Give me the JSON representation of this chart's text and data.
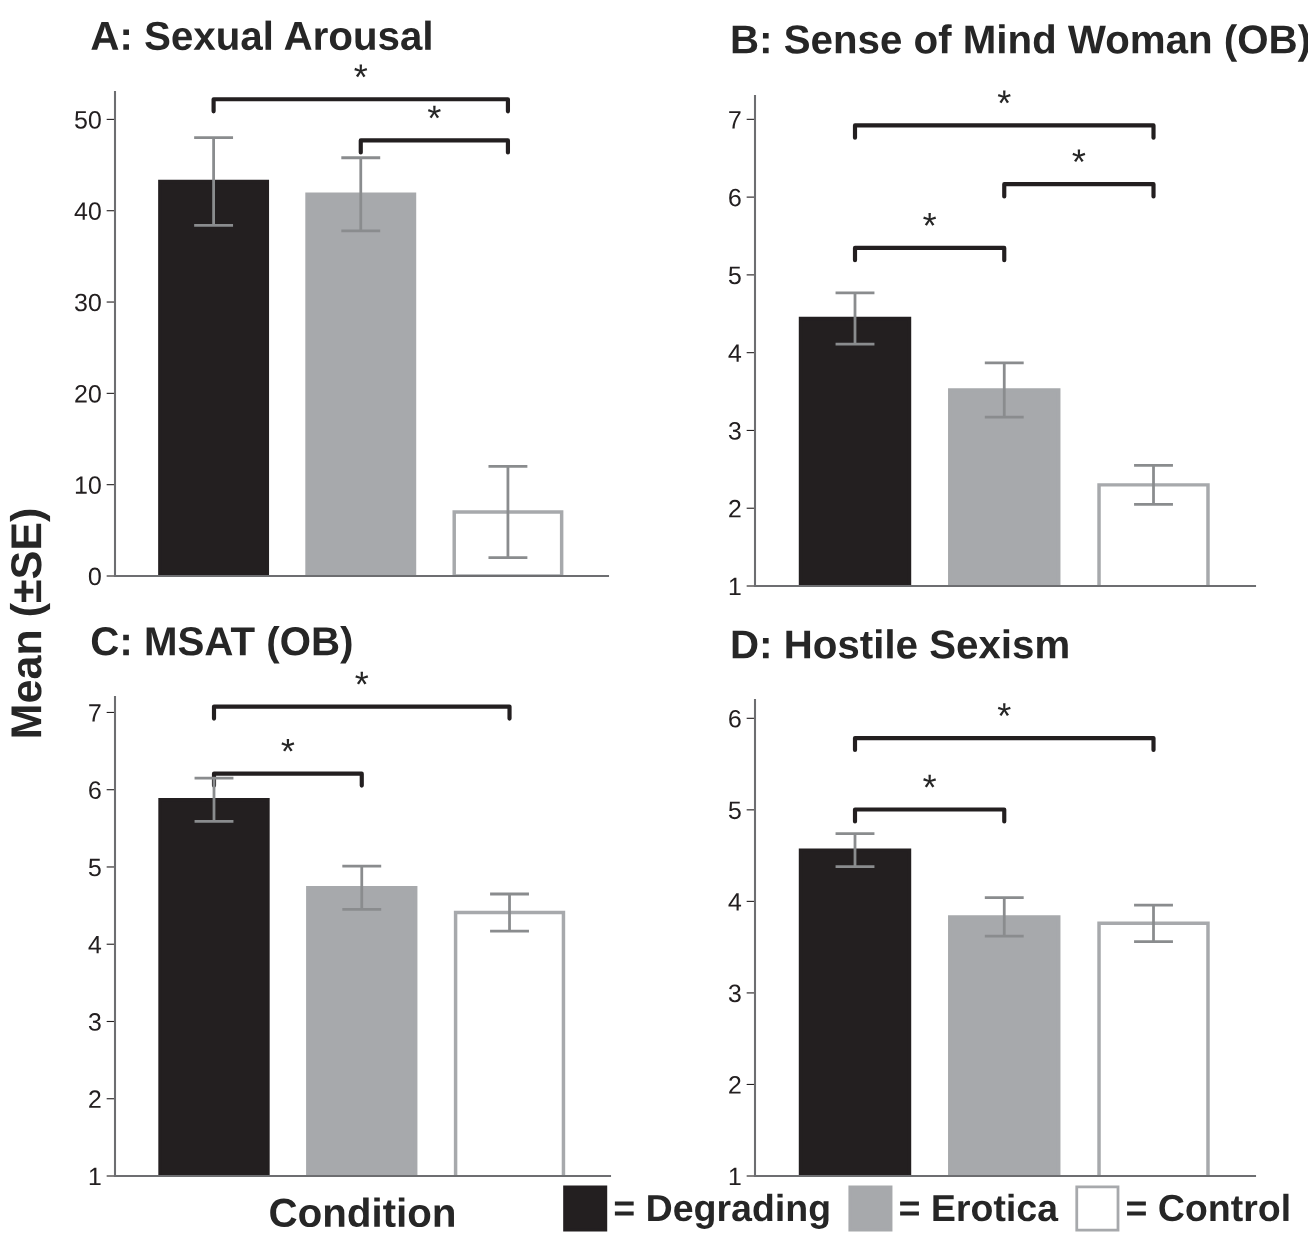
{
  "chart_data": [
    {
      "type": "bar",
      "title": "A: Sexual Arousal",
      "ylabel": "Mean (±SE)",
      "categories": [
        null
      ],
      "ylim": [
        0,
        53
      ],
      "yticks": [
        0,
        10,
        20,
        30,
        40,
        50
      ],
      "tick_labels": "y",
      "annotations": [
        "*",
        "*"
      ],
      "series": [
        {
          "color": "#231f20",
          "values": [
            43.2
          ],
          "errors": [
            4.8
          ]
        },
        {
          "color": "#a7a9ac",
          "values": [
            41.8
          ],
          "errors": [
            4.0
          ]
        },
        {
          "color": "#ffffff",
          "values": [
            7.0
          ],
          "errors": [
            5.0
          ]
        }
      ]
    },
    {
      "type": "bar",
      "title": "B: Sense of Mind Woman (OB)",
      "categories": [
        null
      ],
      "ylim": [
        1,
        7.3
      ],
      "yticks": [
        1,
        2,
        3,
        4,
        5,
        6,
        7
      ],
      "tick_labels": "y",
      "annotations": [
        "*",
        "*",
        "*"
      ],
      "series": [
        {
          "color": "#231f20",
          "values": [
            4.44
          ],
          "errors": [
            0.33
          ]
        },
        {
          "color": "#a7a9ac",
          "values": [
            3.52
          ],
          "errors": [
            0.35
          ]
        },
        {
          "color": "#ffffff",
          "values": [
            2.3
          ],
          "errors": [
            0.25
          ]
        }
      ]
    },
    {
      "type": "bar",
      "title": "C: MSAT (OB)",
      "xlabel": "Condition",
      "categories": [
        null
      ],
      "ylim": [
        1,
        7.2
      ],
      "yticks": [
        1,
        2,
        3,
        4,
        5,
        6,
        7
      ],
      "tick_labels": "y",
      "annotations": [
        "*",
        "*"
      ],
      "series": [
        {
          "color": "#231f20",
          "values": [
            5.87
          ],
          "errors": [
            0.28
          ]
        },
        {
          "color": "#a7a9ac",
          "values": [
            4.73
          ],
          "errors": [
            0.28
          ]
        },
        {
          "color": "#ffffff",
          "values": [
            4.41
          ],
          "errors": [
            0.24
          ]
        }
      ]
    },
    {
      "type": "bar",
      "title": "D: Hostile Sexism",
      "categories": [
        null
      ],
      "ylim": [
        1,
        6.2
      ],
      "yticks": [
        1,
        2,
        3,
        4,
        5,
        6
      ],
      "tick_labels": "y",
      "legend": "bottom",
      "annotations": [
        "*",
        "*"
      ],
      "series": [
        {
          "name": "= Degrading",
          "color": "#231f20",
          "values": [
            4.56
          ],
          "errors": [
            0.18
          ]
        },
        {
          "name": "= Erotica",
          "color": "#a7a9ac",
          "values": [
            3.83
          ],
          "errors": [
            0.21
          ]
        },
        {
          "name": "= Control",
          "color": "#ffffff",
          "values": [
            3.76
          ],
          "errors": [
            0.2
          ]
        }
      ]
    }
  ]
}
